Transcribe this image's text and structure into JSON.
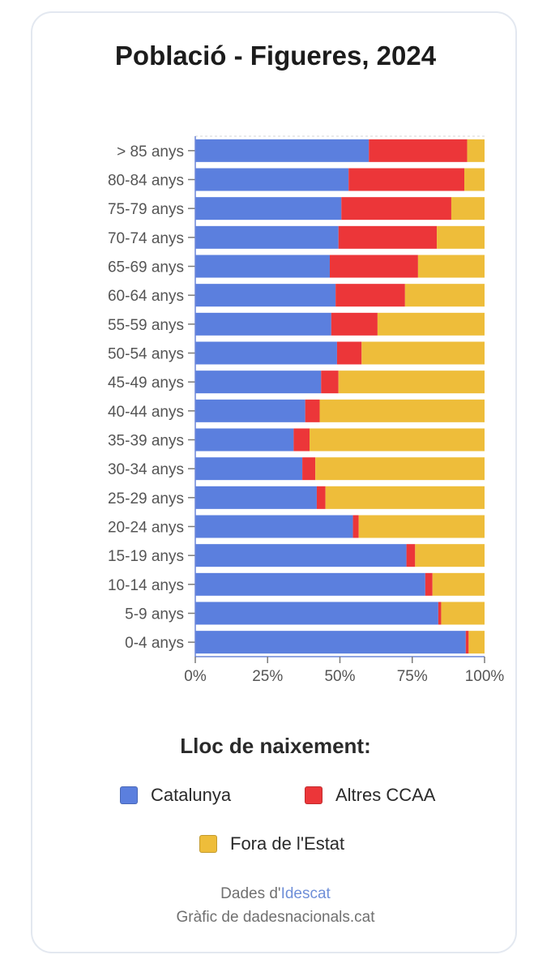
{
  "chart_data": {
    "type": "bar",
    "orientation": "horizontal",
    "stacked": "percent",
    "title": "Població - Figueres, 2024",
    "categories": [
      "> 85 anys",
      "80-84 anys",
      "75-79 anys",
      "70-74 anys",
      "65-69 anys",
      "60-64 anys",
      "55-59 anys",
      "50-54 anys",
      "45-49 anys",
      "40-44 anys",
      "35-39 anys",
      "30-34 anys",
      "25-29 anys",
      "20-24 anys",
      "15-19 anys",
      "10-14 anys",
      "5-9 anys",
      "0-4 anys"
    ],
    "series": [
      {
        "name": "Catalunya",
        "color": "#5b7fde",
        "values": [
          60,
          53,
          50.5,
          49.5,
          46.5,
          48.5,
          47,
          49,
          43.5,
          38,
          34,
          37,
          42,
          54.5,
          73,
          79.5,
          84,
          93.5
        ]
      },
      {
        "name": "Altres CCAA",
        "color": "#ec3639",
        "values": [
          34,
          40,
          38,
          34,
          30.5,
          24,
          16,
          8.5,
          6,
          5,
          5.5,
          4.5,
          3,
          2,
          3,
          2.5,
          1,
          1
        ]
      },
      {
        "name": "Fora de l'Estat",
        "color": "#eebd3a",
        "values": [
          6,
          7,
          11.5,
          16.5,
          23,
          27.5,
          37,
          42.5,
          50.5,
          57,
          60.5,
          58.5,
          55,
          43.5,
          24,
          18,
          15,
          5.5
        ]
      }
    ],
    "x_ticks": [
      "0%",
      "25%",
      "50%",
      "75%",
      "100%"
    ],
    "xlim": [
      0,
      100
    ],
    "legend_position": "bottom",
    "legend_title": "Lloc de naixement:",
    "grid": false
  },
  "footer": {
    "source_prefix": "Dades d'",
    "source_link": "Idescat",
    "credit": "Gràfic de dadesnacionals.cat"
  }
}
